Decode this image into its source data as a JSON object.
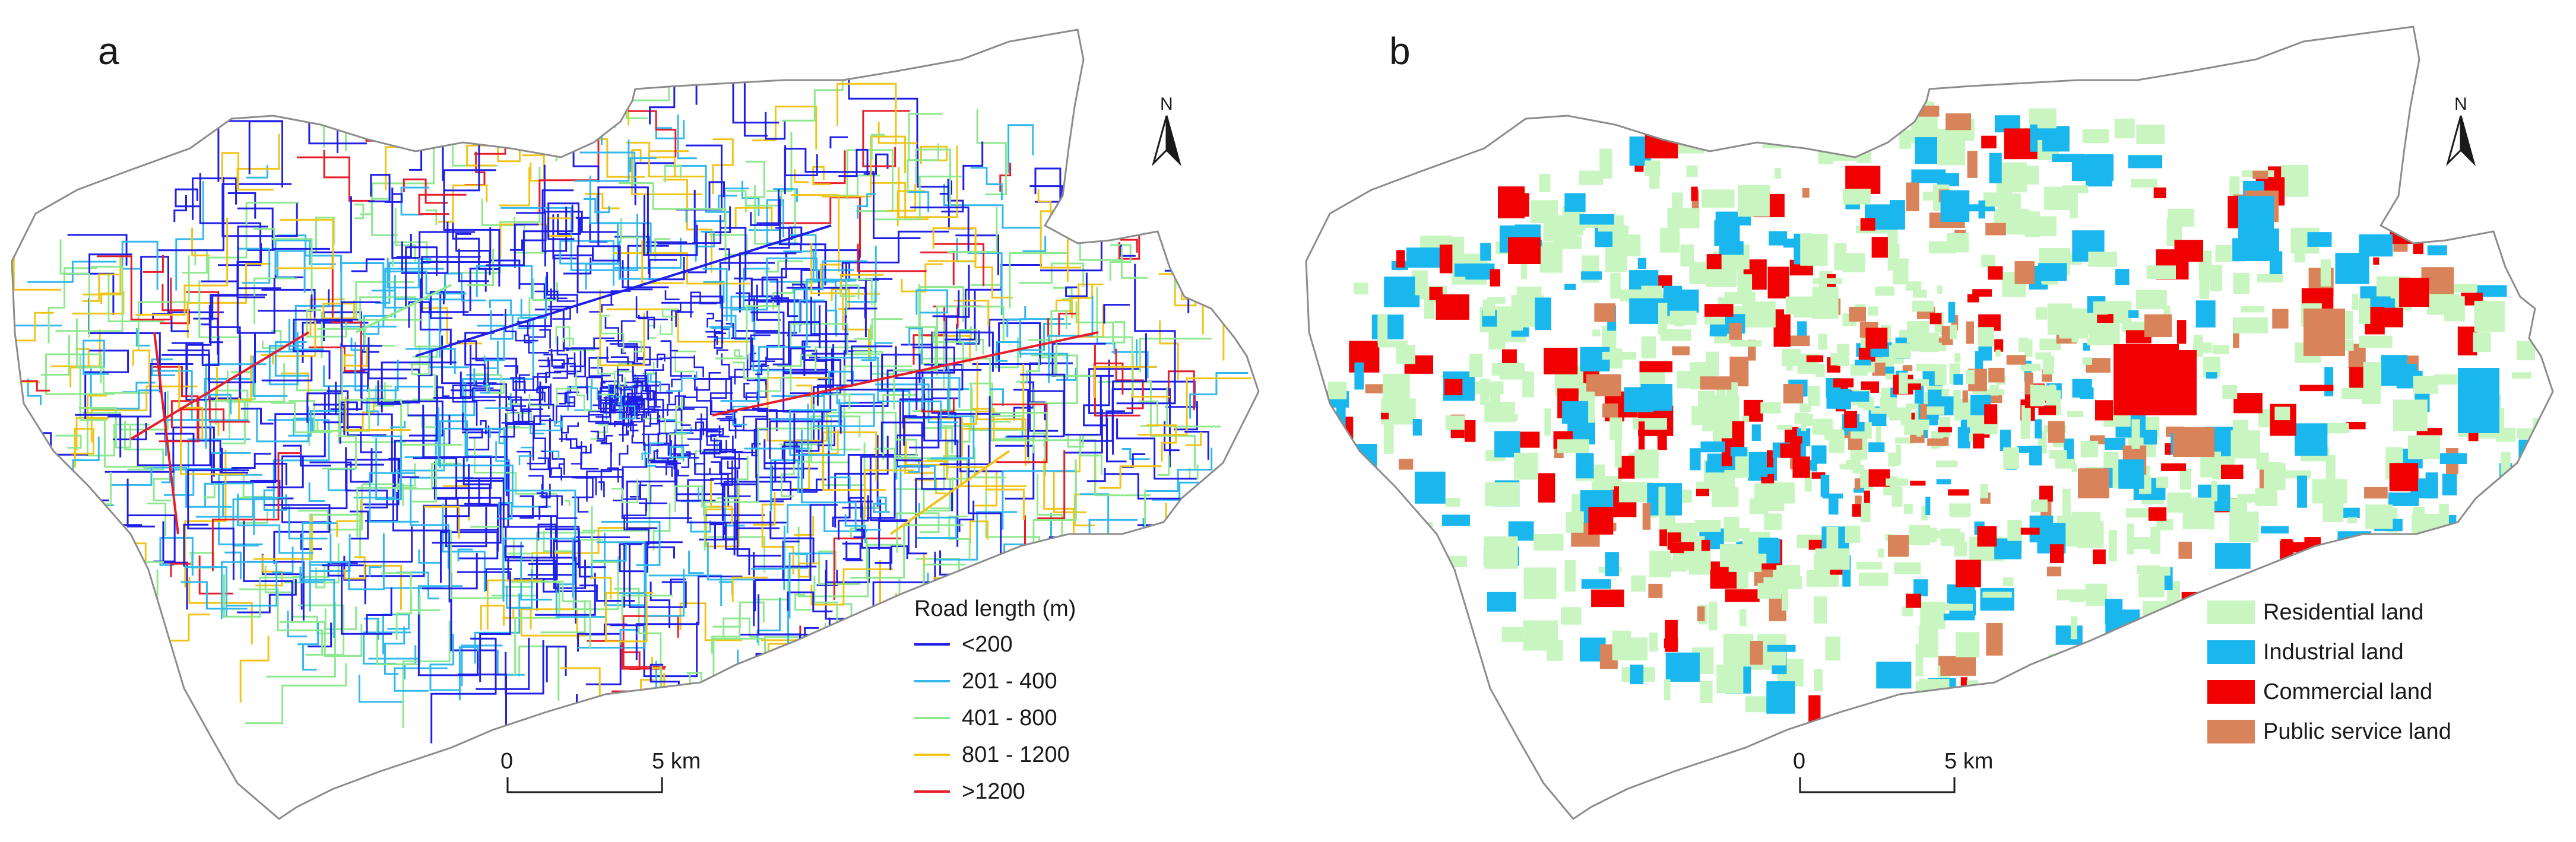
{
  "panels": [
    {
      "id": "a",
      "label": "a",
      "legend": {
        "title": "Road length (m)",
        "items": [
          {
            "label": "<200",
            "color": "#1f1fe6"
          },
          {
            "label": "201 - 400",
            "color": "#33b8ee"
          },
          {
            "label": "401 - 800",
            "color": "#8ee88e"
          },
          {
            "label": "801 - 1200",
            "color": "#f0c419"
          },
          {
            "label": ">1200",
            "color": "#e61e2a"
          }
        ]
      },
      "scale_bar": {
        "start": "0",
        "end": "5 km"
      },
      "north_arrow": "N"
    },
    {
      "id": "b",
      "label": "b",
      "legend": {
        "title": "",
        "items": [
          {
            "label": "Residential land",
            "color": "#c8f5c0"
          },
          {
            "label": "Industrial land",
            "color": "#1ab7ef"
          },
          {
            "label": "Commercial land",
            "color": "#f00000"
          },
          {
            "label": "Public service land",
            "color": "#d9835a"
          }
        ]
      },
      "scale_bar": {
        "start": "0",
        "end": "5 km"
      },
      "north_arrow": "N"
    }
  ],
  "colors": {
    "boundary": "#8c8c8c",
    "text": "#1a1a1a"
  }
}
